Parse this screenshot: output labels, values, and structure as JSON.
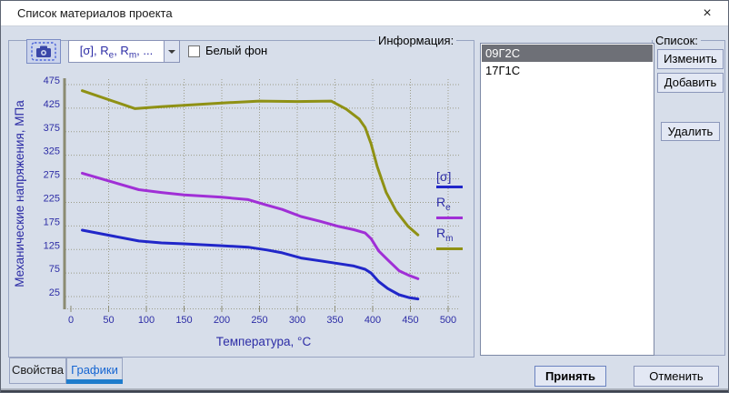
{
  "window": {
    "title": "Список материалов проекта",
    "close_glyph": "×"
  },
  "toolbar": {
    "dropdown": {
      "p1": "[σ], R",
      "s1": "e",
      "p2": ", R",
      "s2": "m",
      "p3": ", ..."
    },
    "white_bg_label": "Белый фон",
    "white_bg_checked": false
  },
  "groups": {
    "info": "Информация:",
    "list": "Список:"
  },
  "list": {
    "items": [
      {
        "name": "09Г2С",
        "selected": true
      },
      {
        "name": "17Г1С",
        "selected": false
      }
    ]
  },
  "buttons": {
    "edit": "Изменить",
    "add": "Добавить",
    "remove": "Удалить",
    "accept": "Принять",
    "cancel": "Отменить"
  },
  "tabs": {
    "properties": "Свойства",
    "graphs": "Графики",
    "active": "Графики"
  },
  "legend": {
    "sigma": "[σ]",
    "re_base": "R",
    "re_sub": "e",
    "rm_base": "R",
    "rm_sub": "m"
  },
  "colors": {
    "axis_text": "#2d2da6",
    "grid": "#9c9c88",
    "axis_line": "#8b8b72",
    "sigma": "#2127c9",
    "re": "#a02fd6",
    "rm": "#8f9114",
    "tab_accent": "#1e7ccc"
  },
  "chart_data": {
    "type": "line",
    "title": "",
    "xlabel": "Температура, °C",
    "ylabel": "Механические напряжения, МПа",
    "xlim": [
      0,
      500
    ],
    "ylim": [
      0,
      487
    ],
    "x_ticks": [
      0,
      50,
      100,
      150,
      200,
      250,
      300,
      350,
      400,
      450,
      500
    ],
    "y_ticks": [
      25,
      75,
      125,
      175,
      225,
      275,
      325,
      375,
      425,
      475
    ],
    "grid": "dotted",
    "legend_position": "right",
    "series": [
      {
        "name": "[σ]",
        "color": "#2127c9",
        "points": [
          [
            15,
            166
          ],
          [
            90,
            143
          ],
          [
            120,
            139
          ],
          [
            150,
            137
          ],
          [
            200,
            133
          ],
          [
            235,
            130
          ],
          [
            260,
            124
          ],
          [
            280,
            118
          ],
          [
            305,
            107
          ],
          [
            330,
            101
          ],
          [
            355,
            95
          ],
          [
            375,
            90
          ],
          [
            390,
            83
          ],
          [
            398,
            75
          ],
          [
            408,
            57
          ],
          [
            420,
            42
          ],
          [
            435,
            29
          ],
          [
            448,
            23
          ],
          [
            460,
            20
          ]
        ]
      },
      {
        "name": "Re",
        "color": "#a02fd6",
        "points": [
          [
            15,
            287
          ],
          [
            90,
            252
          ],
          [
            120,
            246
          ],
          [
            150,
            241
          ],
          [
            200,
            236
          ],
          [
            235,
            231
          ],
          [
            260,
            219
          ],
          [
            280,
            210
          ],
          [
            305,
            195
          ],
          [
            330,
            185
          ],
          [
            355,
            174
          ],
          [
            375,
            167
          ],
          [
            390,
            160
          ],
          [
            398,
            148
          ],
          [
            408,
            122
          ],
          [
            420,
            103
          ],
          [
            435,
            80
          ],
          [
            448,
            70
          ],
          [
            460,
            63
          ]
        ]
      },
      {
        "name": "Rm",
        "color": "#8f9114",
        "points": [
          [
            15,
            462
          ],
          [
            85,
            424
          ],
          [
            120,
            428
          ],
          [
            150,
            431
          ],
          [
            200,
            436
          ],
          [
            250,
            440
          ],
          [
            300,
            439
          ],
          [
            345,
            440
          ],
          [
            365,
            423
          ],
          [
            382,
            402
          ],
          [
            390,
            384
          ],
          [
            398,
            349
          ],
          [
            406,
            301
          ],
          [
            418,
            246
          ],
          [
            431,
            207
          ],
          [
            447,
            174
          ],
          [
            460,
            156
          ]
        ]
      }
    ]
  }
}
